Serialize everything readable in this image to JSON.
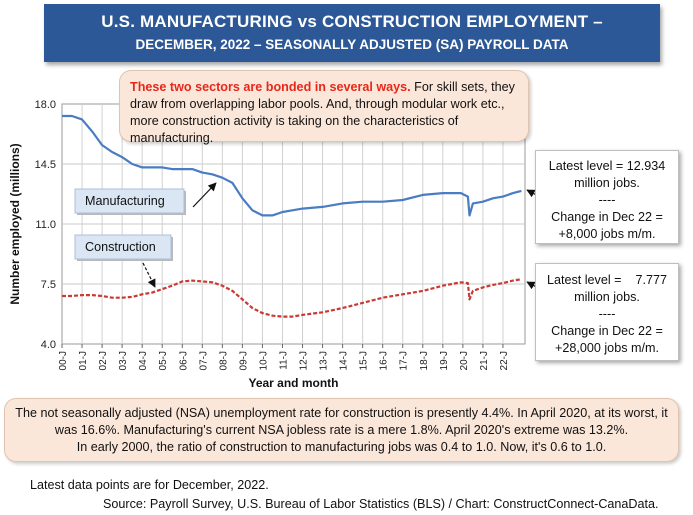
{
  "title_line1": "U.S. MANUFACTURING vs CONSTRUCTION EMPLOYMENT –",
  "title_line2": "DECEMBER, 2022 – SEASONALLY ADJUSTED (SA) PAYROLL DATA",
  "note_top": {
    "highlight": "These two sectors are bonded in several ways.",
    "text": " For skill sets, they draw from overlapping labor pools. And, through modular work etc., more construction activity is taking on the characteristics of manufacturing."
  },
  "side_box_manufacturing": [
    "Latest level = 12.934",
    "million jobs.",
    "----",
    "Change in Dec 22 =",
    "+8,000 jobs m/m."
  ],
  "side_box_construction": [
    "Latest level =    7.777",
    "million jobs.",
    "----",
    "Change in Dec 22 =",
    "+28,000 jobs m/m."
  ],
  "note_bottom": [
    "The not seasonally adjusted (NSA) unemployment rate for construction is presently 4.4%. In April 2020, at its worst, it",
    "was 16.6%. Manufacturing's current NSA jobless rate is a mere 1.8%. April 2020's extreme was 13.2%.",
    "In early 2000, the ratio of construction to manufacturing jobs was 0.4 to 1.0. Now, it's 0.6 to 1.0."
  ],
  "footer_line1": "Latest data points are for December, 2022.",
  "footer_line2": "Source: Payroll Survey, U.S. Bureau of Labor Statistics (BLS) / Chart: ConstructConnect-CanaData.",
  "colors": {
    "banner": "#2c5898",
    "manufacturing": "#4a7cc4",
    "construction": "#c83a32",
    "note_bg": "#fbe7d9",
    "label_bg": "#dbe6f4"
  },
  "chart_data": {
    "type": "line",
    "xlabel": "Year and month",
    "ylabel": "Number employed (millions)",
    "ylim": [
      4.0,
      18.0
    ],
    "yticks": [
      "4.0",
      "7.5",
      "11.0",
      "14.5",
      "18.0"
    ],
    "xticks": [
      "00-J",
      "01-J",
      "02-J",
      "03-J",
      "04-J",
      "05-J",
      "06-J",
      "07-J",
      "08-J",
      "09-J",
      "10-J",
      "11-J",
      "12-J",
      "13-J",
      "14-J",
      "15-J",
      "16-J",
      "17-J",
      "18-J",
      "19-J",
      "20-J",
      "21-J",
      "22-J"
    ],
    "grid": true,
    "series": [
      {
        "name": "Manufacturing",
        "x": [
          2000.0,
          2000.5,
          2001.0,
          2001.5,
          2002.0,
          2002.5,
          2003.0,
          2003.5,
          2004.0,
          2004.5,
          2005.0,
          2005.5,
          2006.0,
          2006.5,
          2007.0,
          2007.5,
          2008.0,
          2008.5,
          2009.0,
          2009.5,
          2010.0,
          2010.5,
          2011.0,
          2011.5,
          2012.0,
          2013.0,
          2014.0,
          2015.0,
          2016.0,
          2017.0,
          2018.0,
          2019.0,
          2019.9,
          2020.25,
          2020.33,
          2020.5,
          2021.0,
          2021.5,
          2022.0,
          2022.5,
          2022.92
        ],
        "values": [
          17.3,
          17.3,
          17.1,
          16.4,
          15.6,
          15.2,
          14.9,
          14.5,
          14.3,
          14.3,
          14.3,
          14.2,
          14.2,
          14.2,
          14.0,
          13.9,
          13.7,
          13.4,
          12.5,
          11.8,
          11.5,
          11.5,
          11.7,
          11.8,
          11.9,
          12.0,
          12.2,
          12.3,
          12.3,
          12.4,
          12.7,
          12.8,
          12.8,
          12.6,
          11.5,
          12.2,
          12.3,
          12.5,
          12.6,
          12.8,
          12.93
        ]
      },
      {
        "name": "Construction",
        "x": [
          2000.0,
          2000.5,
          2001.0,
          2001.5,
          2002.0,
          2002.5,
          2003.0,
          2003.5,
          2004.0,
          2004.5,
          2005.0,
          2005.5,
          2006.0,
          2006.5,
          2007.0,
          2007.5,
          2008.0,
          2008.5,
          2009.0,
          2009.5,
          2010.0,
          2010.5,
          2011.0,
          2011.5,
          2012.0,
          2013.0,
          2014.0,
          2015.0,
          2016.0,
          2017.0,
          2018.0,
          2019.0,
          2019.9,
          2020.25,
          2020.33,
          2020.5,
          2021.0,
          2021.5,
          2022.0,
          2022.5,
          2022.92
        ],
        "values": [
          6.8,
          6.8,
          6.85,
          6.85,
          6.8,
          6.7,
          6.7,
          6.75,
          6.9,
          7.0,
          7.2,
          7.4,
          7.65,
          7.7,
          7.65,
          7.6,
          7.4,
          7.1,
          6.6,
          6.1,
          5.8,
          5.65,
          5.6,
          5.6,
          5.7,
          5.85,
          6.1,
          6.4,
          6.7,
          6.9,
          7.1,
          7.4,
          7.6,
          7.55,
          6.6,
          7.1,
          7.3,
          7.45,
          7.55,
          7.7,
          7.78
        ]
      }
    ],
    "labels": [
      "Manufacturing",
      "Construction"
    ]
  }
}
